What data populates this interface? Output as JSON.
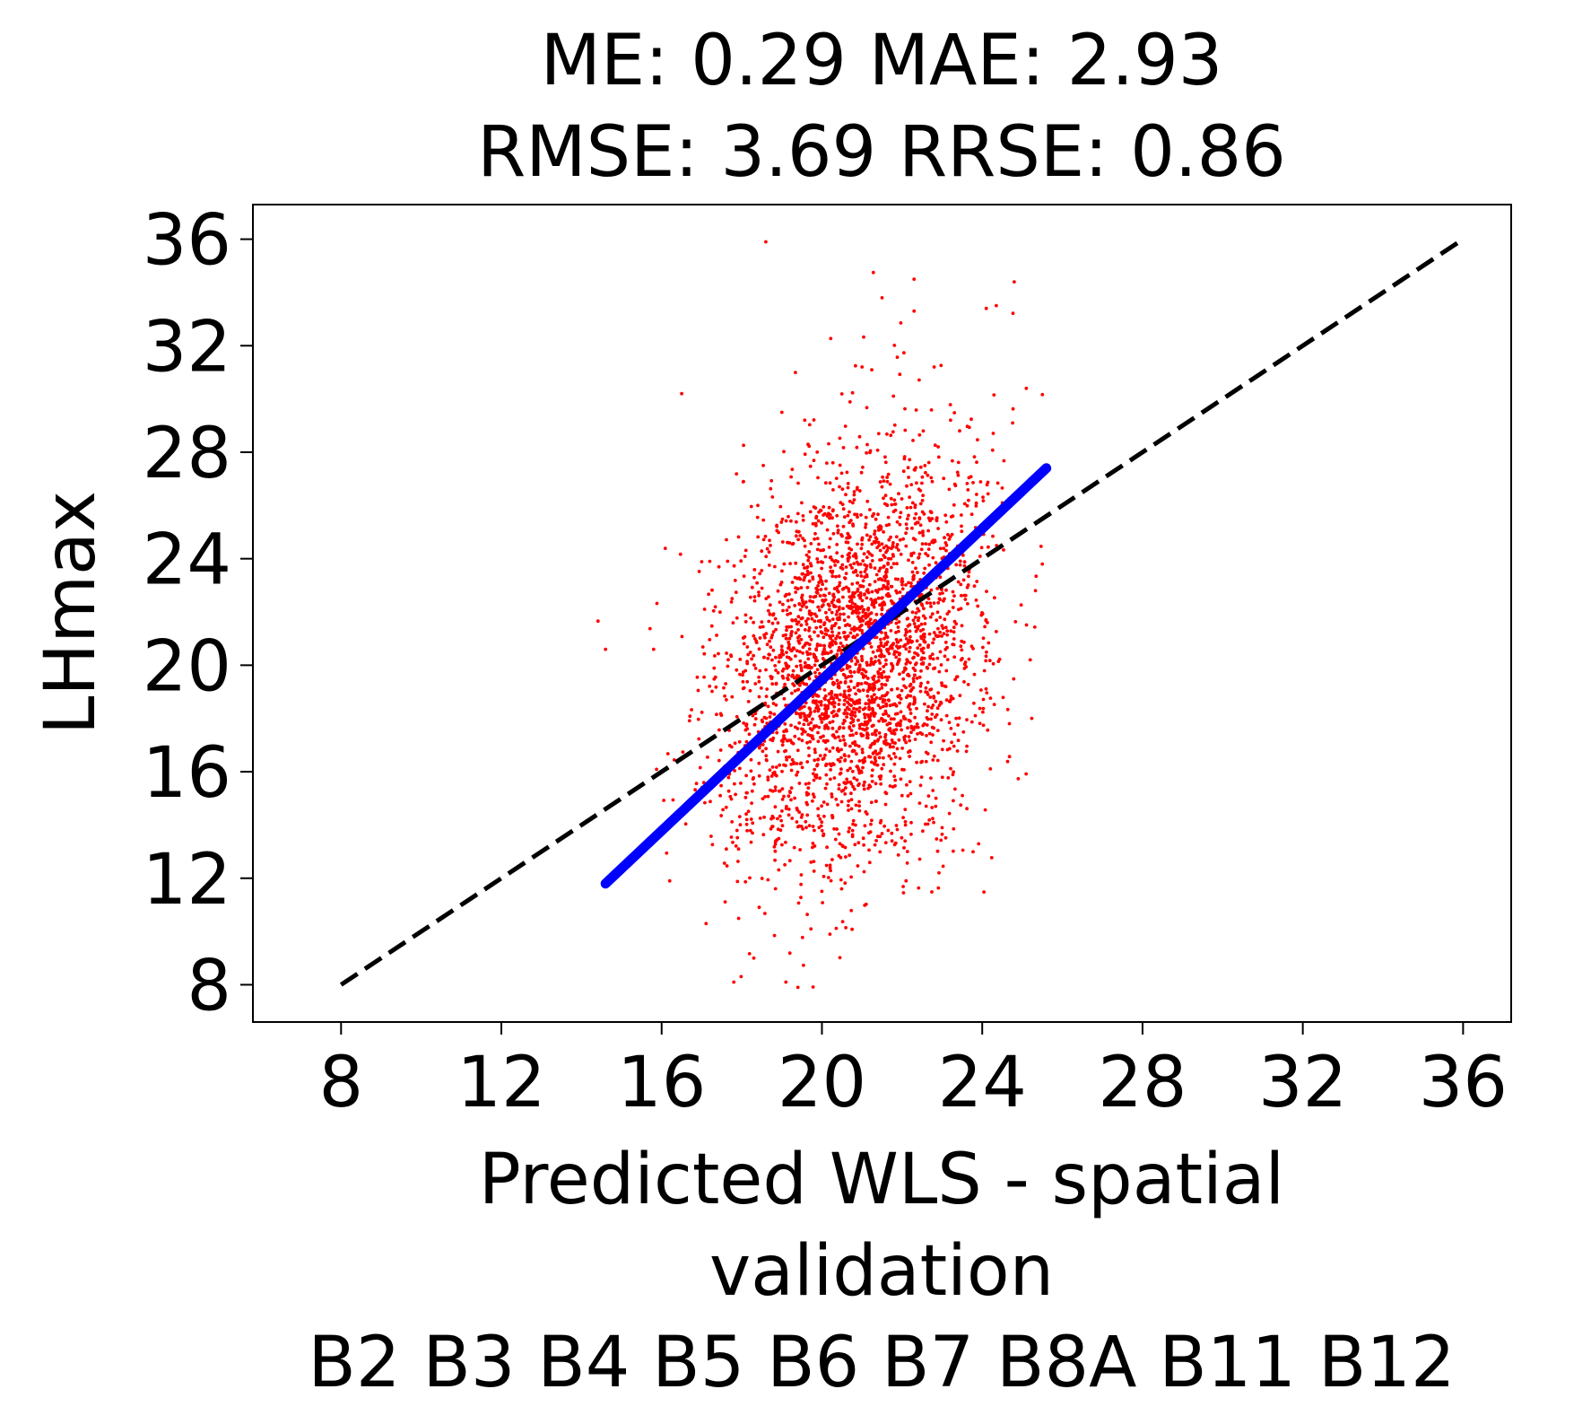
{
  "chart_data": {
    "type": "scatter",
    "title_lines": [
      "ME: 0.29 MAE: 2.93",
      "RMSE: 3.69 RRSE: 0.86"
    ],
    "xlabel_lines": [
      "Predicted WLS - spatial",
      "validation",
      "B2 B3 B4 B5 B6 B7 B8A B11 B12"
    ],
    "ylabel": "LHmax",
    "xlim": [
      5.8,
      37.2
    ],
    "ylim": [
      6.6,
      37.3
    ],
    "xticks": [
      8,
      12,
      16,
      20,
      24,
      28,
      32,
      36
    ],
    "yticks": [
      8,
      12,
      16,
      20,
      24,
      28,
      32,
      36
    ],
    "xtick_labels": [
      "8",
      "12",
      "16",
      "20",
      "24",
      "28",
      "32",
      "36"
    ],
    "ytick_labels": [
      "8",
      "12",
      "16",
      "20",
      "24",
      "28",
      "32",
      "36"
    ],
    "grid": false,
    "scatter": {
      "color": "#ff0000",
      "approx_count": 3000,
      "center": [
        20.8,
        20.2
      ],
      "std": [
        1.6,
        3.9
      ],
      "slope_of_y_on_x": 1.41,
      "representative_points": [
        [
          18.6,
          35.9
        ],
        [
          22.3,
          34.5
        ],
        [
          24.8,
          34.4
        ],
        [
          21.5,
          33.8
        ],
        [
          24.1,
          33.4
        ],
        [
          22.3,
          33.3
        ],
        [
          16.5,
          30.2
        ],
        [
          25.1,
          30.4
        ],
        [
          22.8,
          31.2
        ],
        [
          21.0,
          31.2
        ],
        [
          14.6,
          20.6
        ],
        [
          15.8,
          20.6
        ],
        [
          17.8,
          8.1
        ],
        [
          19.1,
          8.1
        ],
        [
          19.4,
          7.9
        ],
        [
          18.3,
          9.0
        ],
        [
          20.2,
          9.9
        ],
        [
          22.1,
          11.9
        ],
        [
          23.0,
          13.9
        ],
        [
          16.2,
          11.9
        ],
        [
          25.2,
          20.2
        ],
        [
          25.5,
          23.8
        ],
        [
          17.2,
          23.9
        ],
        [
          18.4,
          26.0
        ],
        [
          19.0,
          29.5
        ]
      ]
    },
    "identity_line": {
      "from": [
        8,
        8
      ],
      "to": [
        36,
        36
      ],
      "color": "#000000",
      "style": "dashed"
    },
    "fit_line": {
      "from": [
        14.6,
        11.8
      ],
      "to": [
        25.6,
        27.4
      ],
      "color": "#0000ff",
      "style": "solid"
    }
  }
}
